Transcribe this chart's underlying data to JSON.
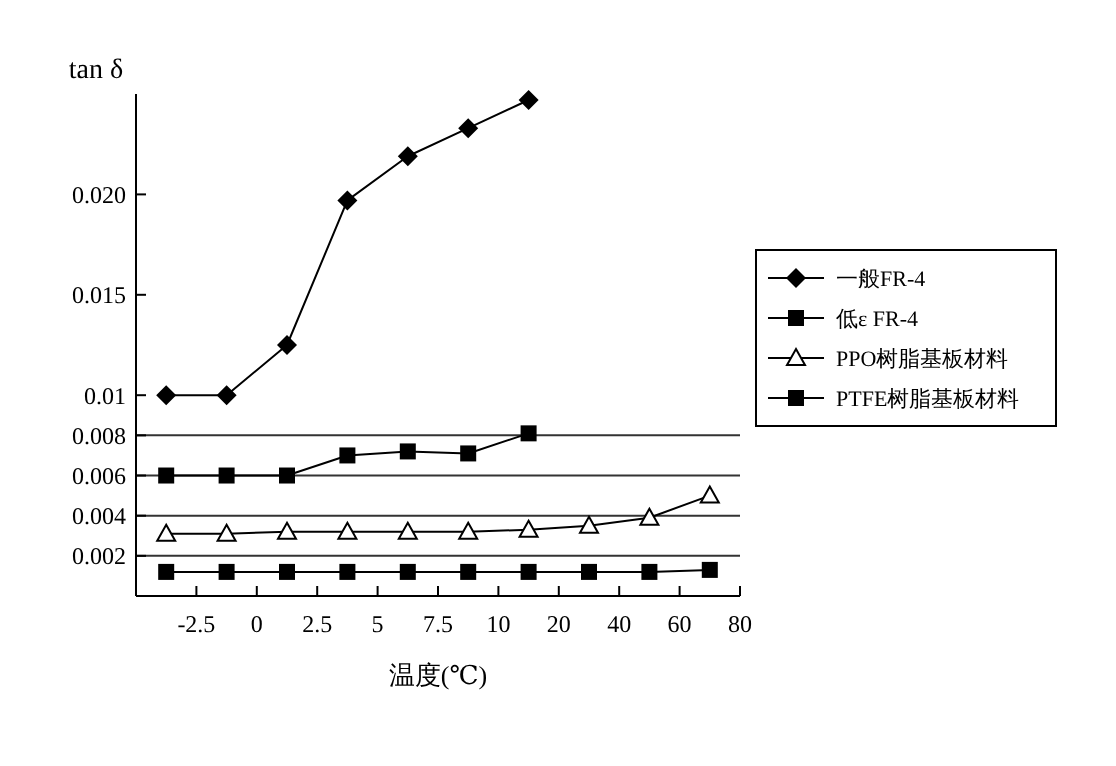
{
  "chart_data": {
    "type": "line",
    "ylabel": "tan δ",
    "xlabel": "温度(℃)",
    "categories": [
      null,
      "-2.5",
      null,
      "0",
      null,
      "2.5",
      null,
      "5",
      null,
      "7.5",
      null,
      "10",
      null,
      "20",
      null,
      "40",
      null,
      "60",
      null,
      "80"
    ],
    "ylim": [
      0,
      0.025
    ],
    "yticks": [
      0.002,
      0.004,
      0.006,
      0.008,
      0.01,
      0.015,
      {
        "value": 0.02,
        "label": "0.020"
      }
    ],
    "ref_lines": [
      {
        "axis": "y",
        "value": 0.002
      },
      {
        "axis": "y",
        "value": 0.004
      },
      {
        "axis": "y",
        "value": 0.006
      },
      {
        "axis": "y",
        "value": 0.008
      }
    ],
    "legend": "right",
    "series": [
      {
        "name": "一般FR-4",
        "color": "#000000",
        "marker": "diamond",
        "values": [
          0.01,
          null,
          0.01,
          null,
          0.0125,
          null,
          0.0197,
          null,
          0.0219,
          null,
          0.0233,
          null,
          0.0247,
          null,
          null,
          null,
          null,
          null,
          null,
          null
        ]
      },
      {
        "name": "低ε FR-4",
        "color": "#000000",
        "marker": "square",
        "values": [
          0.006,
          null,
          0.006,
          null,
          0.006,
          null,
          0.007,
          null,
          0.0072,
          null,
          0.0071,
          null,
          0.0081,
          null,
          null,
          null,
          null,
          null,
          null,
          null
        ]
      },
      {
        "name": "PPO树脂基板材料",
        "color": "#000000",
        "marker": "triangle",
        "values": [
          0.0031,
          null,
          0.0031,
          null,
          0.0032,
          null,
          0.0032,
          null,
          0.0032,
          null,
          0.0032,
          null,
          0.0033,
          null,
          0.0035,
          null,
          0.0039,
          null,
          0.005,
          null
        ]
      },
      {
        "name": "PTFE树脂基板材料",
        "color": "#000000",
        "marker": "square",
        "values": [
          0.0012,
          null,
          0.0012,
          null,
          0.0012,
          null,
          0.0012,
          null,
          0.0012,
          null,
          0.0012,
          null,
          0.0012,
          null,
          0.0012,
          null,
          0.0012,
          null,
          0.0013,
          null
        ]
      }
    ]
  }
}
